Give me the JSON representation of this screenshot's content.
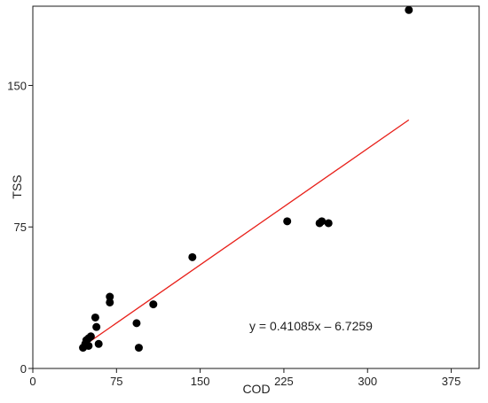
{
  "chart_data": {
    "type": "scatter",
    "title": "",
    "xlabel": "COD",
    "ylabel": "TSS",
    "xlim": [
      0,
      400
    ],
    "ylim": [
      0,
      192
    ],
    "xticks": [
      0,
      75,
      150,
      225,
      300,
      375
    ],
    "yticks": [
      0,
      75,
      150
    ],
    "grid": false,
    "legend": "none",
    "marker_color": "#000000",
    "trendline_color": "#e8201a",
    "series": [
      {
        "points": [
          [
            45,
            11
          ],
          [
            47,
            13
          ],
          [
            48,
            15
          ],
          [
            50,
            12
          ],
          [
            50,
            16
          ],
          [
            52,
            17
          ],
          [
            56,
            27
          ],
          [
            57,
            22
          ],
          [
            59,
            13
          ],
          [
            69,
            38
          ],
          [
            69,
            35
          ],
          [
            93,
            24
          ],
          [
            95,
            11
          ],
          [
            108,
            34
          ],
          [
            143,
            59
          ],
          [
            228,
            78
          ],
          [
            257,
            77
          ],
          [
            259,
            78
          ],
          [
            265,
            77
          ],
          [
            337,
            190
          ]
        ]
      }
    ],
    "trendline": {
      "slope": 0.41085,
      "intercept": -6.7259,
      "x_range": [
        45,
        337
      ],
      "equation": "y = 0.41085x – 6.7259"
    }
  }
}
